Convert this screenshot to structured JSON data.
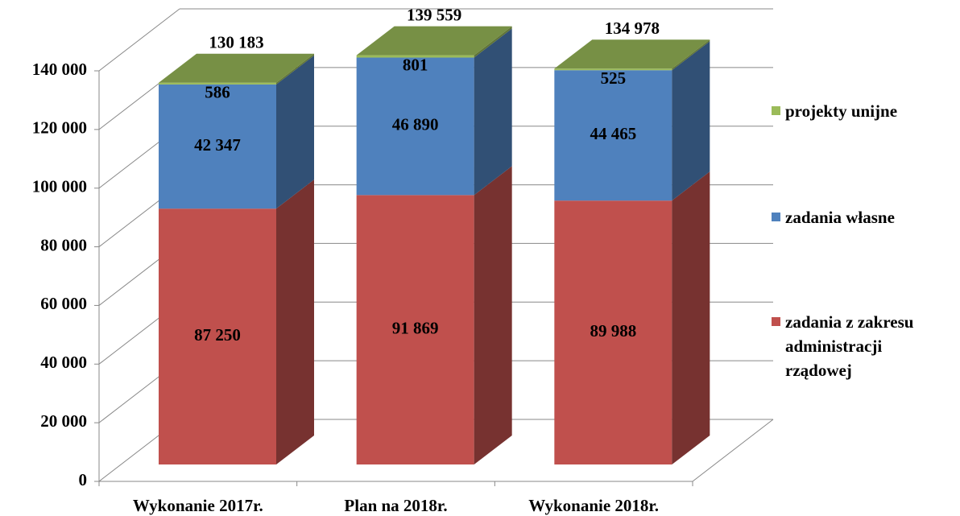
{
  "chart_data": {
    "type": "bar3d_stacked",
    "categories": [
      "Wykonanie 2017r.",
      "Plan na 2018r.",
      "Wykonanie 2018r."
    ],
    "series": [
      {
        "name": "zadania z zakresu administracji rządowej",
        "color": "#c0504d",
        "values": [
          87250,
          91869,
          89988
        ],
        "value_labels": [
          "87 250",
          "91 869",
          "89 988"
        ]
      },
      {
        "name": "zadania własne",
        "color": "#4f81bd",
        "values": [
          42347,
          46890,
          44465
        ],
        "value_labels": [
          "42 347",
          "46 890",
          "44 465"
        ]
      },
      {
        "name": "projekty unijne",
        "color": "#9bbb59",
        "values": [
          586,
          801,
          525
        ],
        "value_labels": [
          "586",
          "801",
          "525"
        ]
      }
    ],
    "totals": [
      130183,
      139559,
      134978
    ],
    "total_labels": [
      "130 183",
      "139 559",
      "134 978"
    ],
    "ylim": [
      0,
      140000
    ],
    "yticks": [
      0,
      {
        "value": 20000,
        "label": "20 000"
      },
      {
        "value": 40000,
        "label": "40 000"
      },
      {
        "value": 60000,
        "label": "60 000"
      },
      {
        "value": 80000,
        "label": "80 000"
      },
      {
        "value": 100000,
        "label": "100 000"
      },
      {
        "value": 120000,
        "label": "120 000"
      },
      {
        "value": 140000,
        "label": "140 000"
      }
    ],
    "grid": true,
    "legend": "right"
  }
}
